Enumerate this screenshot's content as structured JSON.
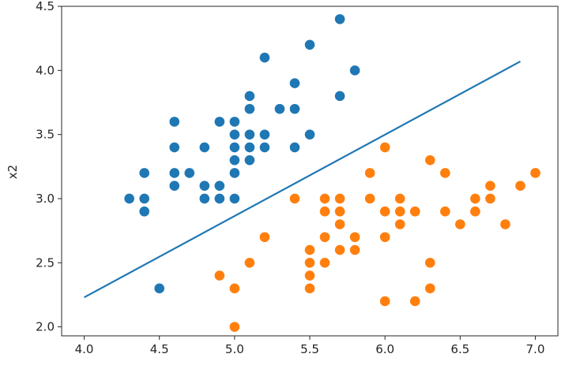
{
  "chart_data": {
    "type": "scatter",
    "title": "",
    "xlabel": "",
    "ylabel": "x2",
    "xlim": [
      3.85,
      7.15
    ],
    "ylim": [
      1.93,
      4.5
    ],
    "xticks": [
      "4.0",
      "4.5",
      "5.0",
      "5.5",
      "6.0",
      "6.5",
      "7.0"
    ],
    "yticks": [
      "2.0",
      "2.5",
      "3.0",
      "3.5",
      "4.0",
      "4.5"
    ],
    "grid": false,
    "legend": "none",
    "series": [
      {
        "kind": "scatter",
        "color": "#1f77b4",
        "points": [
          [
            4.3,
            3.0
          ],
          [
            4.4,
            2.9
          ],
          [
            4.4,
            3.0
          ],
          [
            4.4,
            3.2
          ],
          [
            4.5,
            2.3
          ],
          [
            4.6,
            3.1
          ],
          [
            4.6,
            3.2
          ],
          [
            4.6,
            3.4
          ],
          [
            4.6,
            3.6
          ],
          [
            4.7,
            3.2
          ],
          [
            4.8,
            3.0
          ],
          [
            4.8,
            3.1
          ],
          [
            4.8,
            3.4
          ],
          [
            4.9,
            3.0
          ],
          [
            4.9,
            3.1
          ],
          [
            4.9,
            3.6
          ],
          [
            5.0,
            3.0
          ],
          [
            5.0,
            3.2
          ],
          [
            5.0,
            3.3
          ],
          [
            5.0,
            3.4
          ],
          [
            5.0,
            3.5
          ],
          [
            5.0,
            3.6
          ],
          [
            5.1,
            3.3
          ],
          [
            5.1,
            3.4
          ],
          [
            5.1,
            3.5
          ],
          [
            5.1,
            3.7
          ],
          [
            5.1,
            3.8
          ],
          [
            5.2,
            3.4
          ],
          [
            5.2,
            3.5
          ],
          [
            5.2,
            4.1
          ],
          [
            5.3,
            3.7
          ],
          [
            5.4,
            3.4
          ],
          [
            5.4,
            3.7
          ],
          [
            5.4,
            3.9
          ],
          [
            5.5,
            3.5
          ],
          [
            5.5,
            4.2
          ],
          [
            5.7,
            3.8
          ],
          [
            5.7,
            4.4
          ],
          [
            5.8,
            4.0
          ]
        ]
      },
      {
        "kind": "scatter",
        "color": "#ff7f0e",
        "points": [
          [
            4.9,
            2.4
          ],
          [
            5.0,
            2.0
          ],
          [
            5.0,
            2.3
          ],
          [
            5.1,
            2.5
          ],
          [
            5.2,
            2.7
          ],
          [
            5.4,
            3.0
          ],
          [
            5.5,
            2.3
          ],
          [
            5.5,
            2.4
          ],
          [
            5.5,
            2.5
          ],
          [
            5.5,
            2.6
          ],
          [
            5.6,
            2.5
          ],
          [
            5.6,
            2.7
          ],
          [
            5.6,
            2.9
          ],
          [
            5.6,
            3.0
          ],
          [
            5.7,
            2.6
          ],
          [
            5.7,
            2.8
          ],
          [
            5.7,
            2.9
          ],
          [
            5.7,
            3.0
          ],
          [
            5.8,
            2.6
          ],
          [
            5.8,
            2.7
          ],
          [
            5.9,
            3.0
          ],
          [
            5.9,
            3.2
          ],
          [
            6.0,
            2.2
          ],
          [
            6.0,
            2.7
          ],
          [
            6.0,
            2.9
          ],
          [
            6.0,
            3.4
          ],
          [
            6.1,
            2.8
          ],
          [
            6.1,
            2.9
          ],
          [
            6.1,
            3.0
          ],
          [
            6.2,
            2.2
          ],
          [
            6.2,
            2.9
          ],
          [
            6.3,
            2.3
          ],
          [
            6.3,
            2.5
          ],
          [
            6.3,
            3.3
          ],
          [
            6.4,
            2.9
          ],
          [
            6.4,
            3.2
          ],
          [
            6.5,
            2.8
          ],
          [
            6.6,
            2.9
          ],
          [
            6.6,
            3.0
          ],
          [
            6.7,
            3.0
          ],
          [
            6.7,
            3.1
          ],
          [
            6.8,
            2.8
          ],
          [
            6.9,
            3.1
          ],
          [
            7.0,
            3.2
          ]
        ]
      },
      {
        "kind": "line",
        "color": "#1f77b4",
        "points": [
          [
            4.0,
            2.23
          ],
          [
            6.9,
            4.07
          ]
        ]
      }
    ]
  }
}
